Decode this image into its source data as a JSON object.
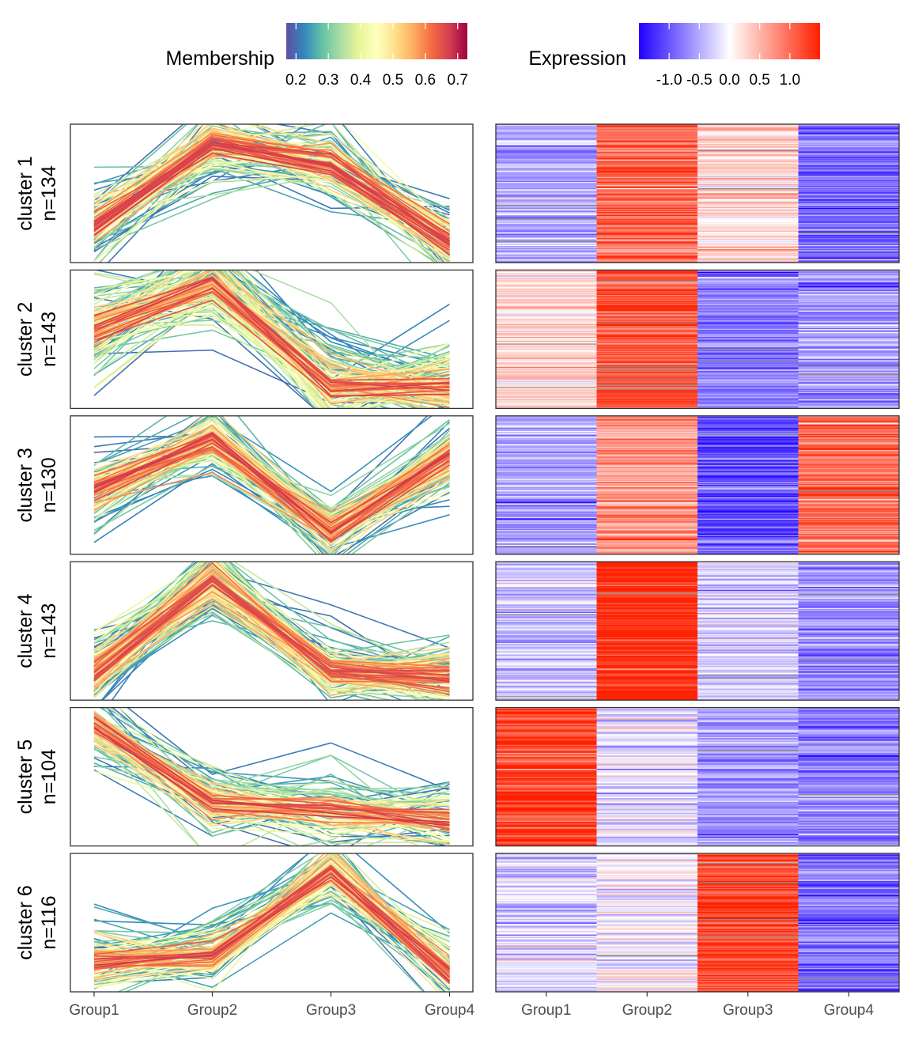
{
  "chart_data": {
    "type": "line",
    "x_categories": [
      "Group1",
      "Group2",
      "Group3",
      "Group4"
    ],
    "legends": {
      "membership": {
        "title": "Membership",
        "ticks": [
          "0.2",
          "0.3",
          "0.4",
          "0.5",
          "0.6",
          "0.7"
        ],
        "tick_values": [
          0.2,
          0.3,
          0.4,
          0.5,
          0.6,
          0.7
        ],
        "range": [
          0.17,
          0.73
        ],
        "colors": [
          "#5E4FA2",
          "#3288BD",
          "#66C2A5",
          "#ABDDA4",
          "#E6F598",
          "#FFFFBF",
          "#FEE08B",
          "#FDAE61",
          "#F46D43",
          "#D53E4F",
          "#9E0142"
        ]
      },
      "expression": {
        "title": "Expression",
        "ticks": [
          "-1.0",
          "-0.5",
          "0.0",
          "0.5",
          "1.0"
        ],
        "tick_values": [
          -1.0,
          -0.5,
          0.0,
          0.5,
          1.0
        ],
        "range": [
          -1.5,
          1.5
        ],
        "colors": [
          "#1F00FF",
          "#FFFFFF",
          "#FF2000"
        ]
      }
    },
    "clusters": [
      {
        "label": "cluster 1",
        "n_label": "n=134",
        "n": 134,
        "ylim": [
          -1.1,
          1.1
        ],
        "line_profile": [
          -0.55,
          0.85,
          0.55,
          -0.85
        ],
        "heatmap_means": [
          -0.5,
          1.0,
          0.3,
          -0.9
        ]
      },
      {
        "label": "cluster 2",
        "n_label": "n=143",
        "n": 143,
        "ylim": [
          -0.7,
          1.2
        ],
        "line_profile": [
          0.4,
          1.1,
          -0.45,
          -0.45
        ],
        "heatmap_means": [
          0.25,
          1.15,
          -0.75,
          -0.65
        ]
      },
      {
        "label": "cluster 3",
        "n_label": "n=130",
        "n": 130,
        "ylim": [
          -1.2,
          1.2
        ],
        "line_profile": [
          -0.1,
          0.85,
          -0.9,
          0.55
        ],
        "heatmap_means": [
          -0.5,
          0.7,
          -1.0,
          0.95
        ]
      },
      {
        "label": "cluster 4",
        "n_label": "n=143",
        "n": 143,
        "ylim": [
          -0.7,
          1.6
        ],
        "line_profile": [
          -0.3,
          1.35,
          -0.3,
          -0.4
        ],
        "heatmap_means": [
          -0.35,
          1.5,
          -0.25,
          -0.65
        ]
      },
      {
        "label": "cluster 5",
        "n_label": "n=104",
        "n": 104,
        "ylim": [
          -0.8,
          1.6
        ],
        "line_profile": [
          1.4,
          -0.1,
          -0.25,
          -0.45
        ],
        "heatmap_means": [
          1.25,
          -0.15,
          -0.55,
          -0.75
        ]
      },
      {
        "label": "cluster 6",
        "n_label": "n=116",
        "n": 116,
        "ylim": [
          -0.8,
          1.6
        ],
        "line_profile": [
          -0.3,
          -0.2,
          1.4,
          -0.6
        ],
        "heatmap_means": [
          -0.25,
          -0.05,
          1.25,
          -0.85
        ]
      }
    ]
  }
}
